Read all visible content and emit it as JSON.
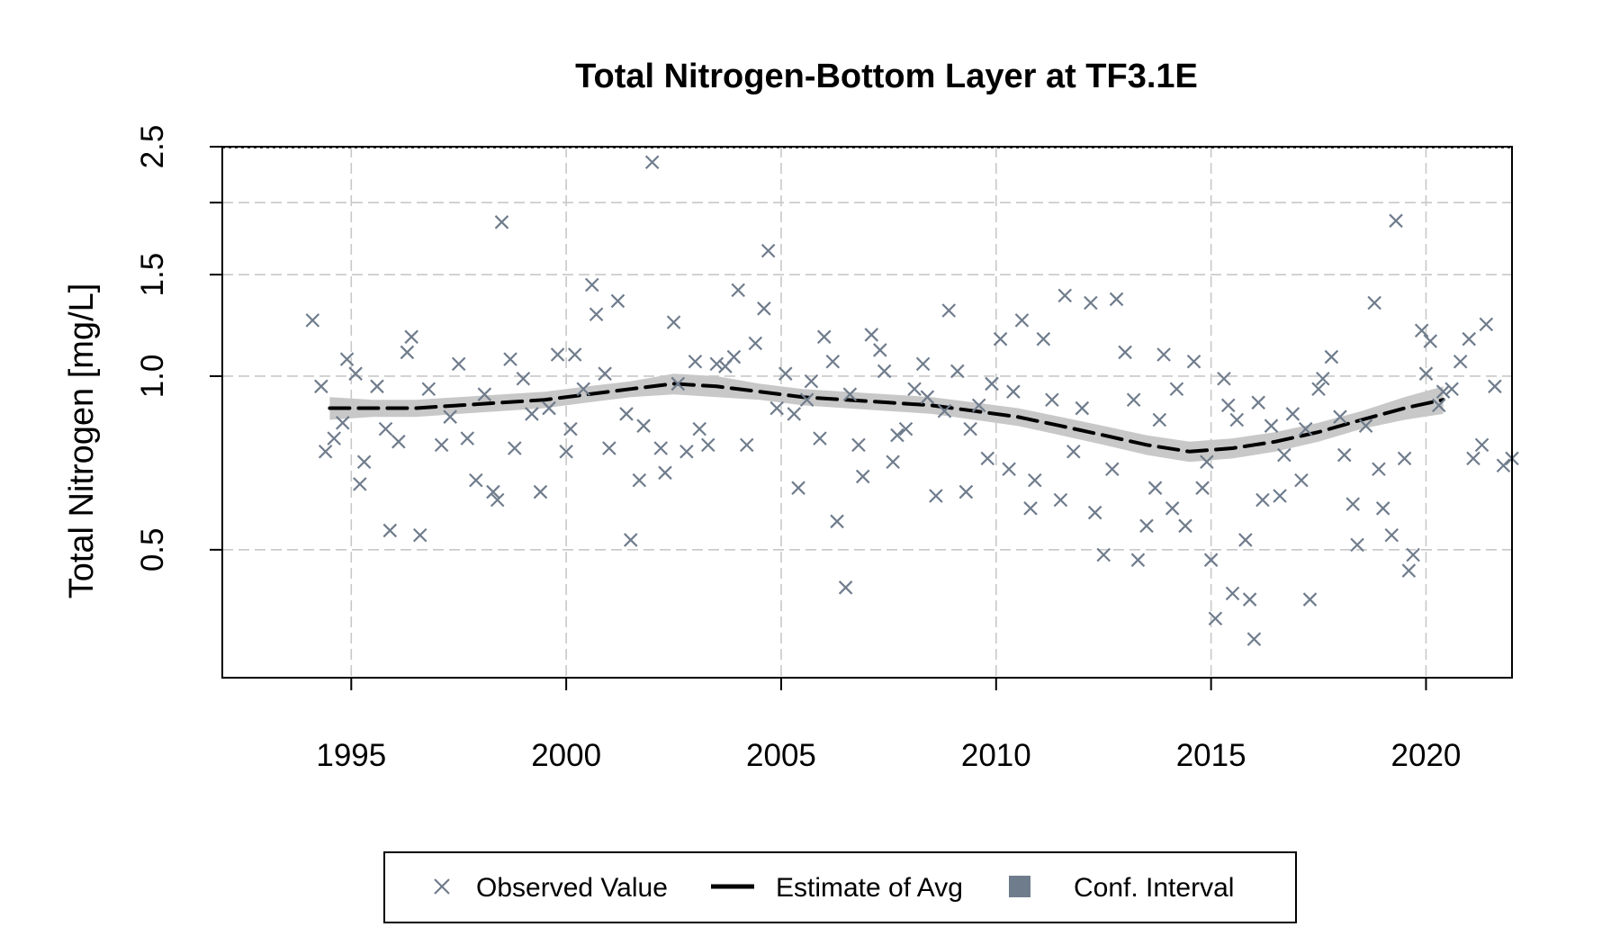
{
  "chart_data": {
    "type": "scatter",
    "title": "Total Nitrogen-Bottom Layer at TF3.1E",
    "xlabel": "",
    "ylabel": "Total Nitrogen [mg/L]",
    "y_scale": "log",
    "xlim": [
      1992.0,
      2022.0
    ],
    "ylim": [
      0.3,
      2.5
    ],
    "x_ticks": [
      1995,
      2000,
      2005,
      2010,
      2015,
      2020
    ],
    "y_ticks": [
      0.5,
      1.0,
      1.5,
      2.5
    ],
    "y_tick_labels": [
      "0.5",
      "1.0",
      "1.5",
      "2.5"
    ],
    "grid": true,
    "colors": {
      "observed": "#6f7c8c",
      "estimate": "#000000",
      "conf_band": "#c8c8c8",
      "conf_legend": "#6f7c8c",
      "grid": "#c8c8c8"
    },
    "legend": {
      "placement": "bottom",
      "entries": [
        {
          "label": "Observed Value",
          "symbol": "x-mark"
        },
        {
          "label": "Estimate of Avg",
          "symbol": "dashed-line"
        },
        {
          "label": "Conf. Interval",
          "symbol": "filled-square"
        }
      ]
    },
    "estimate": {
      "name": "Estimate of Avg",
      "x": [
        1994.5,
        1995.5,
        1996.5,
        1997.5,
        1998.5,
        1999.5,
        2000.5,
        2001.5,
        2002.5,
        2003.5,
        2004.5,
        2005.5,
        2006.5,
        2007.5,
        2008.5,
        2009.5,
        2010.5,
        2011.5,
        2012.5,
        2013.5,
        2014.5,
        2015.5,
        2016.5,
        2017.5,
        2018.5,
        2019.5,
        2020.4
      ],
      "y": [
        0.88,
        0.88,
        0.88,
        0.89,
        0.9,
        0.91,
        0.93,
        0.95,
        0.97,
        0.96,
        0.94,
        0.92,
        0.91,
        0.9,
        0.89,
        0.87,
        0.85,
        0.82,
        0.79,
        0.76,
        0.74,
        0.75,
        0.77,
        0.8,
        0.84,
        0.88,
        0.91
      ],
      "lower": [
        0.84,
        0.85,
        0.85,
        0.86,
        0.87,
        0.88,
        0.9,
        0.92,
        0.93,
        0.92,
        0.91,
        0.89,
        0.88,
        0.87,
        0.86,
        0.84,
        0.82,
        0.79,
        0.76,
        0.73,
        0.71,
        0.72,
        0.74,
        0.77,
        0.81,
        0.84,
        0.86
      ],
      "upper": [
        0.92,
        0.91,
        0.91,
        0.92,
        0.93,
        0.94,
        0.96,
        0.98,
        1.01,
        1.0,
        0.97,
        0.95,
        0.94,
        0.93,
        0.92,
        0.9,
        0.88,
        0.85,
        0.82,
        0.79,
        0.77,
        0.78,
        0.8,
        0.83,
        0.87,
        0.92,
        0.96
      ]
    },
    "observed": {
      "name": "Observed Value",
      "points": [
        [
          1994.1,
          1.25
        ],
        [
          1994.3,
          0.96
        ],
        [
          1994.4,
          0.74
        ],
        [
          1994.6,
          0.78
        ],
        [
          1994.8,
          0.83
        ],
        [
          1994.9,
          1.07
        ],
        [
          1995.1,
          1.01
        ],
        [
          1995.2,
          0.65
        ],
        [
          1995.3,
          0.71
        ],
        [
          1995.6,
          0.96
        ],
        [
          1995.8,
          0.81
        ],
        [
          1995.9,
          0.54
        ],
        [
          1996.1,
          0.77
        ],
        [
          1996.3,
          1.1
        ],
        [
          1996.4,
          1.17
        ],
        [
          1996.6,
          0.53
        ],
        [
          1996.8,
          0.95
        ],
        [
          1997.1,
          0.76
        ],
        [
          1997.3,
          0.85
        ],
        [
          1997.5,
          1.05
        ],
        [
          1997.7,
          0.78
        ],
        [
          1997.9,
          0.66
        ],
        [
          1998.1,
          0.93
        ],
        [
          1998.3,
          0.63
        ],
        [
          1998.4,
          0.61
        ],
        [
          1998.5,
          1.85
        ],
        [
          1998.7,
          1.07
        ],
        [
          1998.8,
          0.75
        ],
        [
          1999.0,
          0.99
        ],
        [
          1999.2,
          0.86
        ],
        [
          1999.4,
          0.63
        ],
        [
          1999.6,
          0.88
        ],
        [
          1999.8,
          1.09
        ],
        [
          2000.0,
          0.74
        ],
        [
          2000.1,
          0.81
        ],
        [
          2000.2,
          1.09
        ],
        [
          2000.4,
          0.95
        ],
        [
          2000.6,
          1.44
        ],
        [
          2000.7,
          1.28
        ],
        [
          2000.9,
          1.01
        ],
        [
          2001.0,
          0.75
        ],
        [
          2001.2,
          1.35
        ],
        [
          2001.4,
          0.86
        ],
        [
          2001.5,
          0.52
        ],
        [
          2001.7,
          0.66
        ],
        [
          2001.8,
          0.82
        ],
        [
          2002.0,
          2.35
        ],
        [
          2002.2,
          0.75
        ],
        [
          2002.3,
          0.68
        ],
        [
          2002.5,
          1.24
        ],
        [
          2002.6,
          0.97
        ],
        [
          2002.8,
          0.74
        ],
        [
          2003.0,
          1.06
        ],
        [
          2003.1,
          0.81
        ],
        [
          2003.3,
          0.76
        ],
        [
          2003.5,
          1.05
        ],
        [
          2003.7,
          1.04
        ],
        [
          2003.9,
          1.08
        ],
        [
          2004.0,
          1.41
        ],
        [
          2004.2,
          0.76
        ],
        [
          2004.4,
          1.14
        ],
        [
          2004.6,
          1.31
        ],
        [
          2004.7,
          1.65
        ],
        [
          2004.9,
          0.88
        ],
        [
          2005.1,
          1.01
        ],
        [
          2005.3,
          0.86
        ],
        [
          2005.4,
          0.64
        ],
        [
          2005.6,
          0.91
        ],
        [
          2005.7,
          0.98
        ],
        [
          2005.9,
          0.78
        ],
        [
          2006.0,
          1.17
        ],
        [
          2006.2,
          1.06
        ],
        [
          2006.3,
          0.56
        ],
        [
          2006.5,
          0.43
        ],
        [
          2006.6,
          0.93
        ],
        [
          2006.8,
          0.76
        ],
        [
          2006.9,
          0.67
        ],
        [
          2007.1,
          1.18
        ],
        [
          2007.3,
          1.11
        ],
        [
          2007.4,
          1.02
        ],
        [
          2007.6,
          0.71
        ],
        [
          2007.7,
          0.79
        ],
        [
          2007.9,
          0.81
        ],
        [
          2008.1,
          0.95
        ],
        [
          2008.3,
          1.05
        ],
        [
          2008.4,
          0.92
        ],
        [
          2008.6,
          0.62
        ],
        [
          2008.8,
          0.87
        ],
        [
          2008.9,
          1.3
        ],
        [
          2009.1,
          1.02
        ],
        [
          2009.3,
          0.63
        ],
        [
          2009.4,
          0.81
        ],
        [
          2009.6,
          0.89
        ],
        [
          2009.8,
          0.72
        ],
        [
          2009.9,
          0.97
        ],
        [
          2010.1,
          1.16
        ],
        [
          2010.3,
          0.69
        ],
        [
          2010.4,
          0.94
        ],
        [
          2010.6,
          1.25
        ],
        [
          2010.8,
          0.59
        ],
        [
          2010.9,
          0.66
        ],
        [
          2011.1,
          1.16
        ],
        [
          2011.3,
          0.91
        ],
        [
          2011.5,
          0.61
        ],
        [
          2011.6,
          1.38
        ],
        [
          2011.8,
          0.74
        ],
        [
          2012.0,
          0.88
        ],
        [
          2012.2,
          1.34
        ],
        [
          2012.3,
          0.58
        ],
        [
          2012.5,
          0.49
        ],
        [
          2012.7,
          0.69
        ],
        [
          2012.8,
          1.36
        ],
        [
          2013.0,
          1.1
        ],
        [
          2013.2,
          0.91
        ],
        [
          2013.3,
          0.48
        ],
        [
          2013.5,
          0.55
        ],
        [
          2013.7,
          0.64
        ],
        [
          2013.8,
          0.84
        ],
        [
          2013.9,
          1.09
        ],
        [
          2014.1,
          0.59
        ],
        [
          2014.2,
          0.95
        ],
        [
          2014.4,
          0.55
        ],
        [
          2014.6,
          1.06
        ],
        [
          2014.8,
          0.64
        ],
        [
          2014.9,
          0.71
        ],
        [
          2015.0,
          0.48
        ],
        [
          2015.1,
          0.38
        ],
        [
          2015.3,
          0.99
        ],
        [
          2015.4,
          0.89
        ],
        [
          2015.5,
          0.42
        ],
        [
          2015.6,
          0.84
        ],
        [
          2015.8,
          0.52
        ],
        [
          2015.9,
          0.41
        ],
        [
          2016.0,
          0.35
        ],
        [
          2016.1,
          0.9
        ],
        [
          2016.2,
          0.61
        ],
        [
          2016.4,
          0.82
        ],
        [
          2016.6,
          0.62
        ],
        [
          2016.7,
          0.73
        ],
        [
          2016.9,
          0.86
        ],
        [
          2017.1,
          0.66
        ],
        [
          2017.2,
          0.81
        ],
        [
          2017.3,
          0.41
        ],
        [
          2017.5,
          0.95
        ],
        [
          2017.6,
          0.99
        ],
        [
          2017.8,
          1.08
        ],
        [
          2018.0,
          0.85
        ],
        [
          2018.1,
          0.73
        ],
        [
          2018.3,
          0.6
        ],
        [
          2018.4,
          0.51
        ],
        [
          2018.6,
          0.82
        ],
        [
          2018.8,
          1.34
        ],
        [
          2018.9,
          0.69
        ],
        [
          2019.0,
          0.59
        ],
        [
          2019.2,
          0.53
        ],
        [
          2019.3,
          1.86
        ],
        [
          2019.5,
          0.72
        ],
        [
          2019.6,
          0.46
        ],
        [
          2019.7,
          0.49
        ],
        [
          2019.9,
          1.2
        ],
        [
          2020.0,
          1.01
        ],
        [
          2020.1,
          1.15
        ],
        [
          2020.3,
          0.89
        ],
        [
          2020.4,
          0.94
        ],
        [
          2020.6,
          0.95
        ],
        [
          2020.8,
          1.06
        ],
        [
          2021.0,
          1.16
        ],
        [
          2021.1,
          0.72
        ],
        [
          2021.3,
          0.76
        ],
        [
          2021.4,
          1.23
        ],
        [
          2021.6,
          0.96
        ],
        [
          2021.8,
          0.7
        ],
        [
          2022.0,
          0.72
        ]
      ]
    }
  }
}
